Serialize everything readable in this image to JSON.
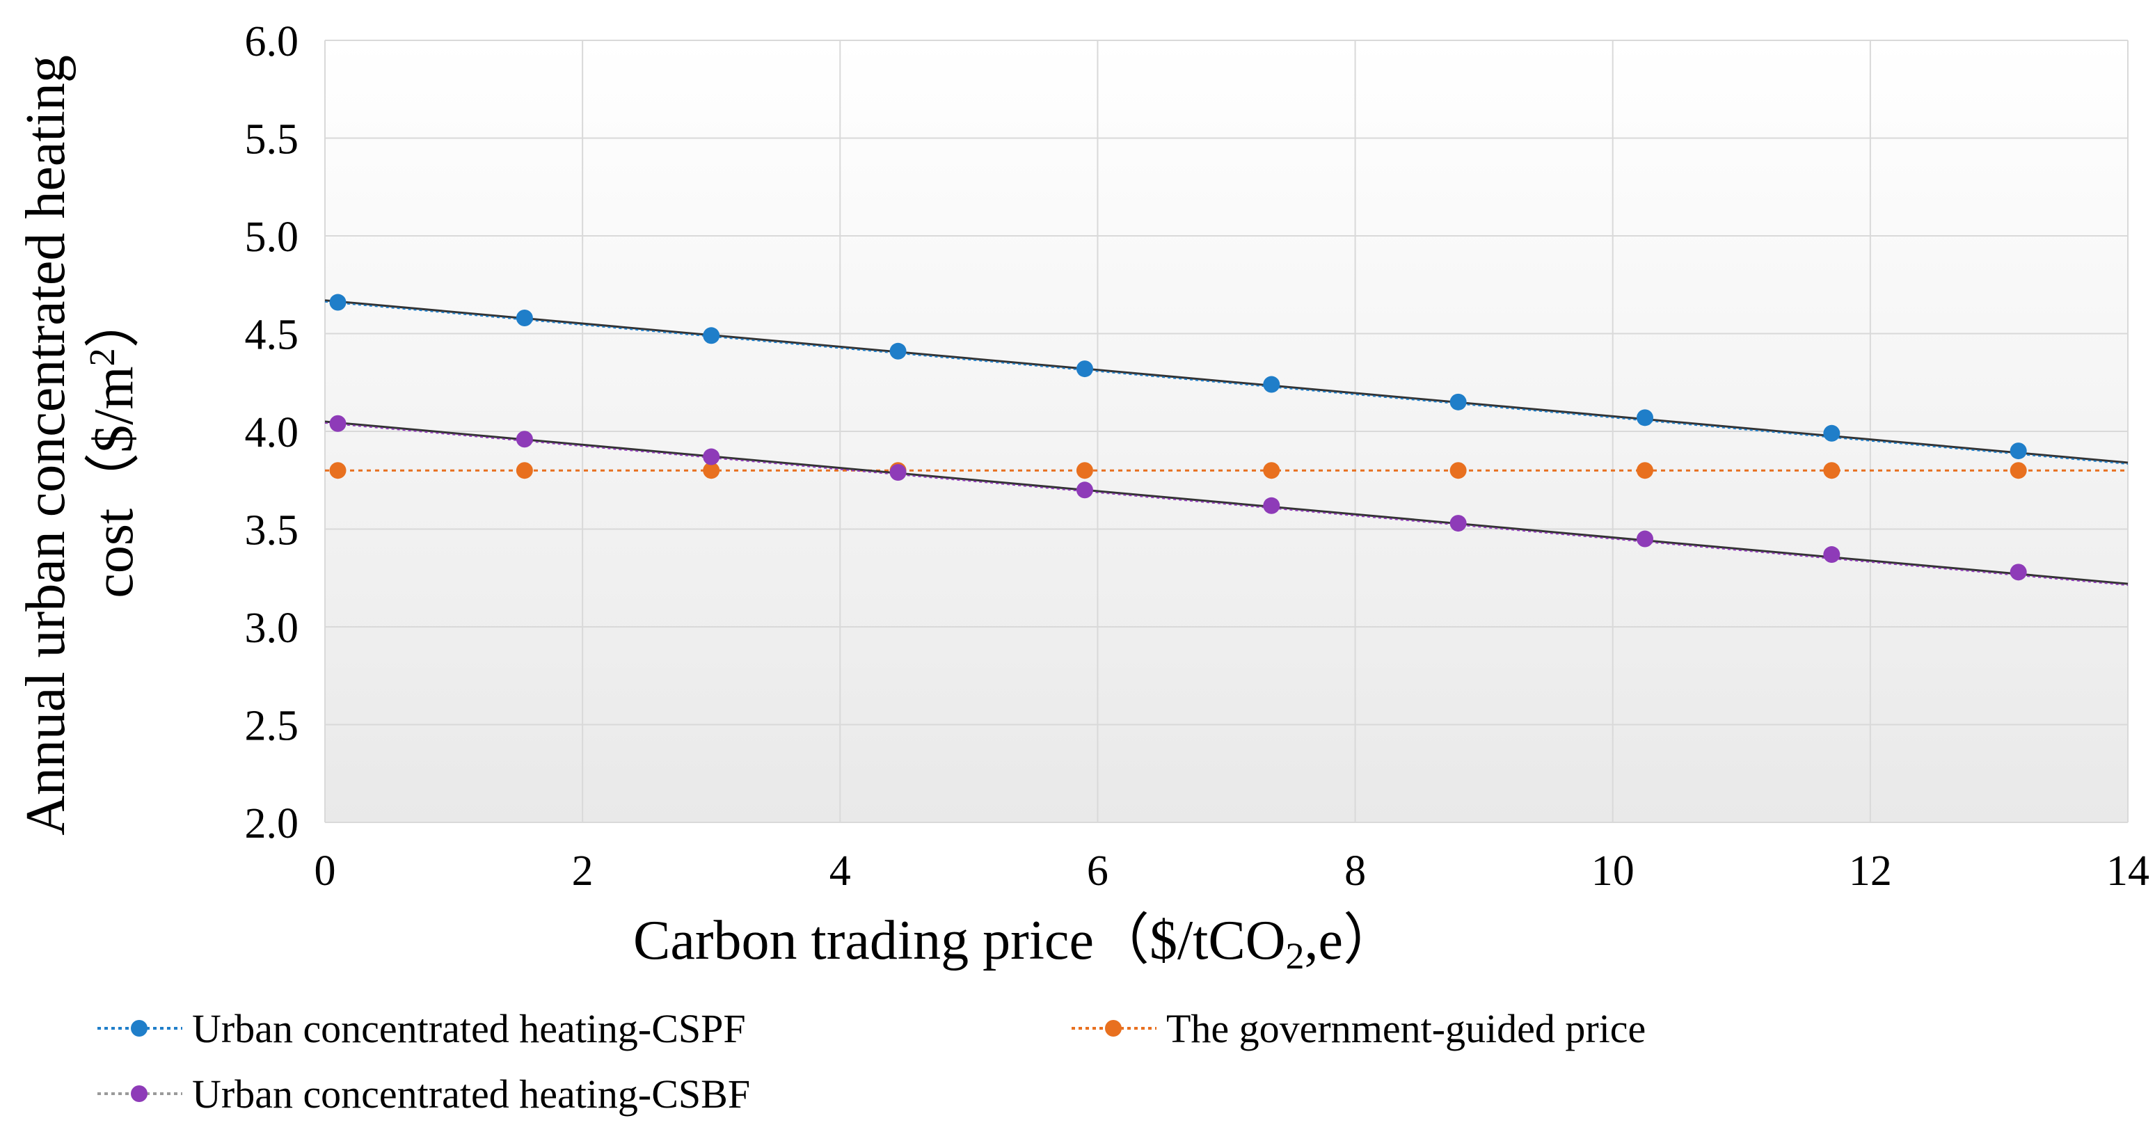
{
  "chart_data": {
    "type": "scatter",
    "title": "",
    "xlabel_main": "Carbon trading price（$/tCO",
    "xlabel_sub": "2",
    "xlabel_end": ",e）",
    "ylabel_line1": "Annual urban concentrated heating",
    "ylabel_line2_main": "cost（$/m",
    "ylabel_line2_sup": "2",
    "ylabel_line2_end": "）",
    "xlim": [
      0,
      14
    ],
    "ylim": [
      2.0,
      6.0
    ],
    "xticks": [
      "0",
      "2",
      "4",
      "6",
      "8",
      "10",
      "12",
      "14"
    ],
    "yticks": [
      "2.0",
      "2.5",
      "3.0",
      "3.5",
      "4.0",
      "4.5",
      "5.0",
      "5.5",
      "6.0"
    ],
    "grid": true,
    "legend_position": "bottom",
    "series": [
      {
        "name": "Urban concentrated heating-CSPF",
        "color": "#1f7ec9",
        "x": [
          0.1,
          1.55,
          3.0,
          4.45,
          5.9,
          7.35,
          8.8,
          10.25,
          11.7,
          13.15
        ],
        "y": [
          4.66,
          4.58,
          4.49,
          4.41,
          4.32,
          4.24,
          4.15,
          4.07,
          3.99,
          3.9
        ],
        "trendline": {
          "x": [
            0.0,
            14.0
          ],
          "y": [
            4.67,
            3.84
          ]
        }
      },
      {
        "name": "The government-guided price",
        "color": "#e8701f",
        "x": [
          0.1,
          1.55,
          3.0,
          4.45,
          5.9,
          7.35,
          8.8,
          10.25,
          11.7,
          13.15
        ],
        "y": [
          3.8,
          3.8,
          3.8,
          3.8,
          3.8,
          3.8,
          3.8,
          3.8,
          3.8,
          3.8
        ],
        "trendline": {
          "x": [
            0.0,
            14.0
          ],
          "y": [
            3.8,
            3.8
          ]
        }
      },
      {
        "name": "Urban concentrated heating-CSBF",
        "color": "#8e3bb8",
        "x": [
          0.1,
          1.55,
          3.0,
          4.45,
          5.9,
          7.35,
          8.8,
          10.25,
          11.7,
          13.15
        ],
        "y": [
          4.04,
          3.96,
          3.87,
          3.79,
          3.7,
          3.62,
          3.53,
          3.45,
          3.37,
          3.28
        ],
        "trendline": {
          "x": [
            0.0,
            14.0
          ],
          "y": [
            4.05,
            3.22
          ]
        }
      }
    ]
  }
}
